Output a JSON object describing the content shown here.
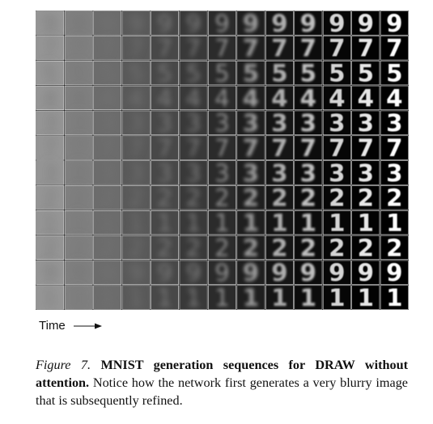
{
  "figure": {
    "grid": {
      "rows": 12,
      "cols": 13,
      "digits": [
        "9",
        "7",
        "5",
        "4",
        "3",
        "7",
        "3",
        "2",
        "1",
        "2",
        "9",
        "1"
      ]
    },
    "time_label": "Time",
    "caption": {
      "label": "Figure 7.",
      "title": "MNIST generation sequences for DRAW without attention.",
      "body": "Notice how the network first generates a very blurry image that is subsequently refined."
    }
  }
}
